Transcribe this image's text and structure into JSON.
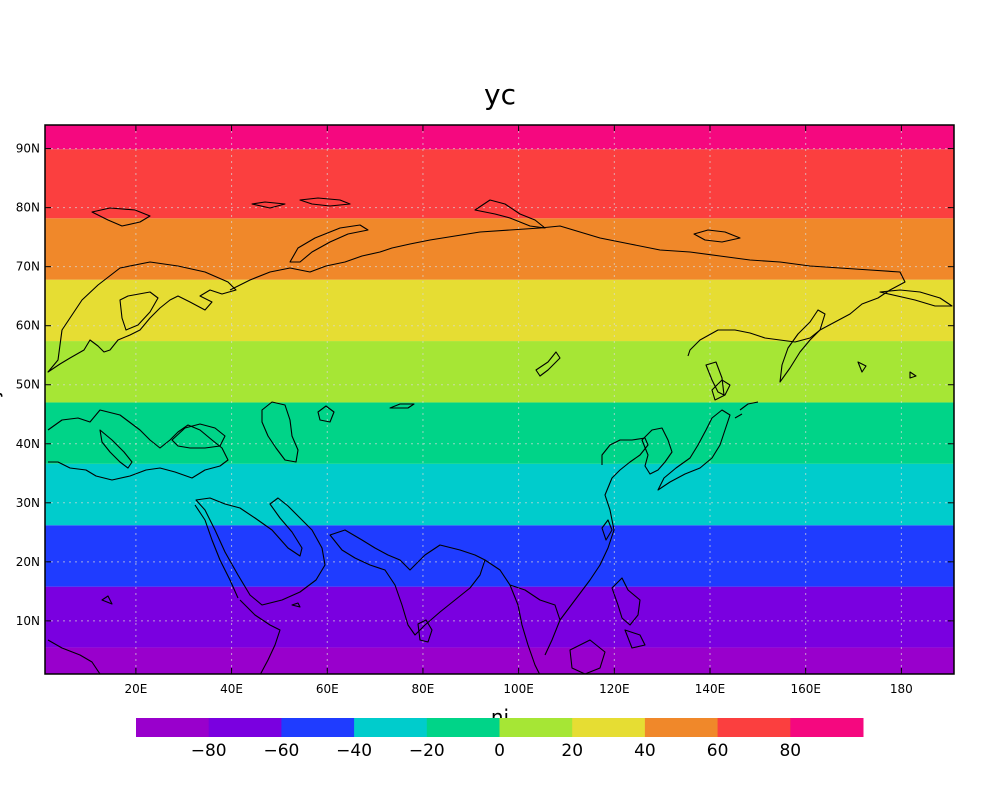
{
  "title": "yc",
  "x_axis_label": "ni",
  "y_axis_label": "nj",
  "map": {
    "longitude_ticks": [
      "20E",
      "40E",
      "60E",
      "80E",
      "100E",
      "120E",
      "140E",
      "160E",
      "180"
    ],
    "latitude_ticks": [
      "10N",
      "20N",
      "30N",
      "40N",
      "50N",
      "60N",
      "70N",
      "80N",
      "90N"
    ],
    "grid": true,
    "coastlines": true
  },
  "bands": [
    {
      "color": "#9900cc"
    },
    {
      "color": "#7a00e0"
    },
    {
      "color": "#1f3cff"
    },
    {
      "color": "#00cccc"
    },
    {
      "color": "#00d488"
    },
    {
      "color": "#a6e635"
    },
    {
      "color": "#e6dd33"
    },
    {
      "color": "#f0882a"
    },
    {
      "color": "#fb3f3f"
    },
    {
      "color": "#f5087f"
    }
  ],
  "colorbar": {
    "colors": [
      "#9900cc",
      "#7a00e0",
      "#1f3cff",
      "#00cccc",
      "#00d488",
      "#a6e635",
      "#e6dd33",
      "#f0882a",
      "#fb3f3f",
      "#f5087f"
    ],
    "labels": [
      "−80",
      "−60",
      "−40",
      "−20",
      "0",
      "20",
      "40",
      "60",
      "80"
    ]
  }
}
